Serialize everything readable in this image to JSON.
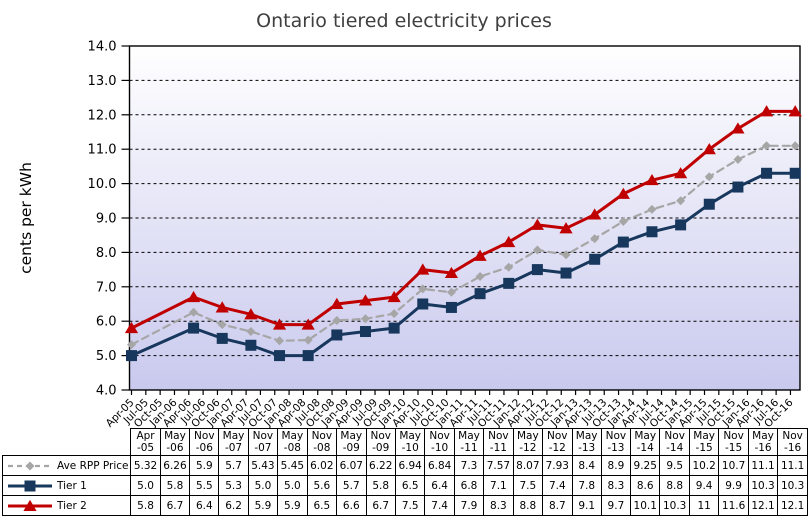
{
  "chart_data": {
    "type": "line",
    "title": "Ontario tiered electricity prices",
    "xlabel": "",
    "ylabel": "cents per kWh",
    "ylim": [
      4.0,
      14.0
    ],
    "y_tick_step": 1.0,
    "grid": "horizontal-dashed",
    "legend_position": "table-left-column",
    "plot_background_gradient": {
      "top": "#ffffff",
      "bottom": "#c9c9ee"
    },
    "x_tick_labels": [
      "Apr-05",
      "Jul-05",
      "Oct-05",
      "Jan-06",
      "Apr-06",
      "Jul-06",
      "Oct-06",
      "Jan-07",
      "Apr-07",
      "Jul-07",
      "Oct-07",
      "Jan-08",
      "Apr-08",
      "Jul-08",
      "Oct-08",
      "Jan-09",
      "Apr-09",
      "Jul-09",
      "Oct-09",
      "Jan-10",
      "Apr-10",
      "Jul-10",
      "Oct-10",
      "Jan-11",
      "Apr-11",
      "Jul-11",
      "Oct-11",
      "Jan-12",
      "Apr-12",
      "Jul-12",
      "Oct-12",
      "Jan-13",
      "Apr-13",
      "Jul-13",
      "Oct-13",
      "Jan-14",
      "Apr-14",
      "Jul-14",
      "Oct-14",
      "Jan-15",
      "Apr-15",
      "Jul-15",
      "Oct-15",
      "Jan-16",
      "Apr-16",
      "Jul-16",
      "Oct-16"
    ],
    "x": [
      "Apr-05",
      "May-06",
      "Nov-06",
      "May-07",
      "Nov-07",
      "May-08",
      "Nov-08",
      "May-09",
      "Nov-09",
      "May-10",
      "Nov-10",
      "May-11",
      "Nov-11",
      "May-12",
      "Nov-12",
      "May-13",
      "Nov-13",
      "May-14",
      "Nov-14",
      "May-15",
      "Nov-15",
      "May-16",
      "Nov-16"
    ],
    "series": [
      {
        "name": "Ave RPP Price",
        "color": "#a6a6a6",
        "line_style": "dashed",
        "line_width": 2.2,
        "marker": "diamond",
        "values": [
          5.32,
          6.26,
          5.9,
          5.7,
          5.43,
          5.45,
          6.02,
          6.07,
          6.22,
          6.94,
          6.84,
          7.3,
          7.57,
          8.07,
          7.93,
          8.4,
          8.9,
          9.25,
          9.5,
          10.2,
          10.7,
          11.1,
          11.1
        ]
      },
      {
        "name": "Tier 1",
        "color": "#17375d",
        "line_style": "solid",
        "line_width": 3,
        "marker": "square",
        "values": [
          5.0,
          5.8,
          5.5,
          5.3,
          5.0,
          5.0,
          5.6,
          5.7,
          5.8,
          6.5,
          6.4,
          6.8,
          7.1,
          7.5,
          7.4,
          7.8,
          8.3,
          8.6,
          8.8,
          9.4,
          9.9,
          10.3,
          10.3
        ]
      },
      {
        "name": "Tier 2",
        "color": "#c00000",
        "line_style": "solid",
        "line_width": 3,
        "marker": "triangle",
        "values": [
          5.8,
          6.7,
          6.4,
          6.2,
          5.9,
          5.9,
          6.5,
          6.6,
          6.7,
          7.5,
          7.4,
          7.9,
          8.3,
          8.8,
          8.7,
          9.1,
          9.7,
          10.1,
          10.3,
          11,
          11.6,
          12.1,
          12.1
        ]
      }
    ]
  },
  "table": {
    "legend_column_header": "",
    "columns": [
      "Apr-05",
      "May-06",
      "Nov-06",
      "May-07",
      "Nov-07",
      "May-08",
      "Nov-08",
      "May-09",
      "Nov-09",
      "May-10",
      "Nov-10",
      "May-11",
      "Nov-11",
      "May-12",
      "Nov-12",
      "May-13",
      "Nov-13",
      "May-14",
      "Nov-14",
      "May-15",
      "Nov-15",
      "May-16",
      "Nov-16"
    ],
    "rows": [
      {
        "label": "Ave RPP Price",
        "display_values": [
          "5.32",
          "6.26",
          "5.9",
          "5.7",
          "5.43",
          "5.45",
          "6.02",
          "6.07",
          "6.22",
          "6.94",
          "6.84",
          "7.3",
          "7.57",
          "8.07",
          "7.93",
          "8.4",
          "8.9",
          "9.25",
          "9.5",
          "10.2",
          "10.7",
          "11.1",
          "11.1"
        ]
      },
      {
        "label": "Tier 1",
        "display_values": [
          "5.0",
          "5.8",
          "5.5",
          "5.3",
          "5.0",
          "5.0",
          "5.6",
          "5.7",
          "5.8",
          "6.5",
          "6.4",
          "6.8",
          "7.1",
          "7.5",
          "7.4",
          "7.8",
          "8.3",
          "8.6",
          "8.8",
          "9.4",
          "9.9",
          "10.3",
          "10.3"
        ]
      },
      {
        "label": "Tier 2",
        "display_values": [
          "5.8",
          "6.7",
          "6.4",
          "6.2",
          "5.9",
          "5.9",
          "6.5",
          "6.6",
          "6.7",
          "7.5",
          "7.4",
          "7.9",
          "8.3",
          "8.8",
          "8.7",
          "9.1",
          "9.7",
          "10.1",
          "10.3",
          "11",
          "11.6",
          "12.1",
          "12.1"
        ]
      }
    ]
  }
}
